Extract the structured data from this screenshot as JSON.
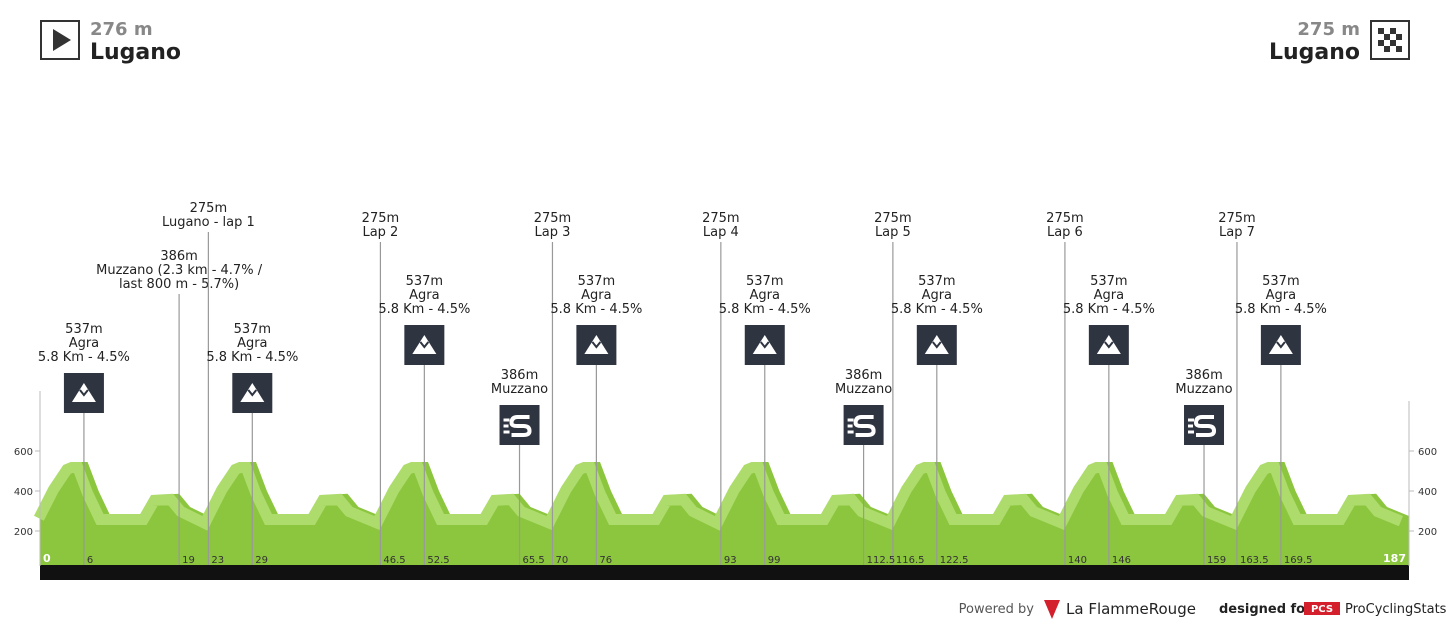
{
  "header": {
    "start": {
      "elevation": "276 m",
      "name": "Lugano"
    },
    "finish": {
      "elevation": "275 m",
      "name": "Lugano"
    }
  },
  "chart_data": {
    "type": "area",
    "color": "#8cc63f",
    "highlight": "#addc6c",
    "x": [
      0,
      2,
      4,
      5,
      6.5,
      8,
      9.5,
      14.5,
      16,
      19,
      20.5,
      23,
      25,
      27,
      28,
      29.5,
      31,
      32.5,
      37.5,
      39,
      42,
      43.5,
      46.5,
      48.5,
      50.5,
      51.5,
      53,
      54.5,
      56,
      61,
      62.5,
      65.5,
      67,
      70,
      72,
      74,
      75,
      76.5,
      78,
      79.5,
      84.5,
      86,
      89,
      90.5,
      93,
      95,
      97,
      98,
      99.5,
      101,
      102.5,
      107.5,
      109,
      112,
      113.5,
      116.5,
      118.5,
      120.5,
      121.5,
      123,
      124.5,
      126,
      131,
      132.5,
      135.5,
      137,
      140,
      142,
      144,
      145,
      146.5,
      148,
      149.5,
      154.5,
      156,
      159,
      160.5,
      163.5,
      165.5,
      167.5,
      168.5,
      170,
      171.5,
      173,
      178,
      179.5,
      182.5,
      184,
      187
    ],
    "values": [
      276,
      420,
      530,
      545,
      545,
      400,
      285,
      285,
      380,
      386,
      320,
      275,
      420,
      530,
      545,
      545,
      400,
      285,
      285,
      380,
      386,
      320,
      275,
      420,
      530,
      545,
      545,
      400,
      285,
      285,
      380,
      386,
      320,
      275,
      420,
      530,
      545,
      545,
      400,
      285,
      285,
      380,
      386,
      320,
      275,
      420,
      530,
      545,
      545,
      400,
      285,
      285,
      380,
      386,
      320,
      275,
      420,
      530,
      545,
      545,
      400,
      285,
      285,
      380,
      386,
      320,
      275,
      420,
      530,
      545,
      545,
      400,
      285,
      285,
      380,
      386,
      320,
      275,
      420,
      530,
      545,
      545,
      400,
      285,
      285,
      380,
      386,
      320,
      275
    ],
    "xlim": [
      0,
      187
    ],
    "ylim": [
      25,
      850
    ],
    "yticks": [
      200,
      400,
      600
    ],
    "xticks": [
      0,
      6,
      19,
      23,
      29,
      46.5,
      52.5,
      65.5,
      70,
      76,
      93,
      99,
      112.5,
      116.5,
      122.5,
      140,
      146,
      159,
      163.5,
      169.5,
      187
    ],
    "markers": [
      {
        "km": 6,
        "icon": "climb",
        "elevation": "537m",
        "lines": [
          "Agra",
          "5.8 Km - 4.5%"
        ]
      },
      {
        "km": 19,
        "icon": "none",
        "elevation": "386m",
        "lines": [
          "Muzzano (2.3 km - 4.7% /",
          "last 800 m - 5.7%)"
        ]
      },
      {
        "km": 23,
        "icon": "lap",
        "elevation": "275m",
        "lines": [
          "Lugano - lap 1"
        ]
      },
      {
        "km": 29,
        "icon": "climb",
        "elevation": "537m",
        "lines": [
          "Agra",
          "5.8 Km - 4.5%"
        ]
      },
      {
        "km": 46.5,
        "icon": "lap",
        "elevation": "275m",
        "lines": [
          "Lap 2"
        ]
      },
      {
        "km": 52.5,
        "icon": "climb",
        "elevation": "537m",
        "lines": [
          "Agra",
          "5.8 Km - 4.5%"
        ]
      },
      {
        "km": 65.5,
        "icon": "sprint",
        "elevation": "386m",
        "lines": [
          "Muzzano"
        ]
      },
      {
        "km": 70,
        "icon": "lap",
        "elevation": "275m",
        "lines": [
          "Lap 3"
        ]
      },
      {
        "km": 76,
        "icon": "climb",
        "elevation": "537m",
        "lines": [
          "Agra",
          "5.8 Km - 4.5%"
        ]
      },
      {
        "km": 93,
        "icon": "lap",
        "elevation": "275m",
        "lines": [
          "Lap 4"
        ]
      },
      {
        "km": 99,
        "icon": "climb",
        "elevation": "537m",
        "lines": [
          "Agra",
          "5.8 Km - 4.5%"
        ]
      },
      {
        "km": 112.5,
        "icon": "sprint",
        "elevation": "386m",
        "lines": [
          "Muzzano"
        ]
      },
      {
        "km": 116.5,
        "icon": "lap",
        "elevation": "275m",
        "lines": [
          "Lap 5"
        ]
      },
      {
        "km": 122.5,
        "icon": "climb",
        "elevation": "537m",
        "lines": [
          "Agra",
          "5.8 Km - 4.5%"
        ]
      },
      {
        "km": 140,
        "icon": "lap",
        "elevation": "275m",
        "lines": [
          "Lap 6"
        ]
      },
      {
        "km": 146,
        "icon": "climb",
        "elevation": "537m",
        "lines": [
          "Agra",
          "5.8 Km - 4.5%"
        ]
      },
      {
        "km": 159,
        "icon": "sprint",
        "elevation": "386m",
        "lines": [
          "Muzzano"
        ]
      },
      {
        "km": 163.5,
        "icon": "lap",
        "elevation": "275m",
        "lines": [
          "Lap 7"
        ]
      },
      {
        "km": 169.5,
        "icon": "climb",
        "elevation": "537m",
        "lines": [
          "Agra",
          "5.8 Km - 4.5%"
        ]
      }
    ]
  },
  "footer": {
    "powered": "Powered by",
    "brand": "La FlammeRouge",
    "designed": "designed for",
    "pcs": "PCS",
    "site": "ProCyclingStats"
  }
}
